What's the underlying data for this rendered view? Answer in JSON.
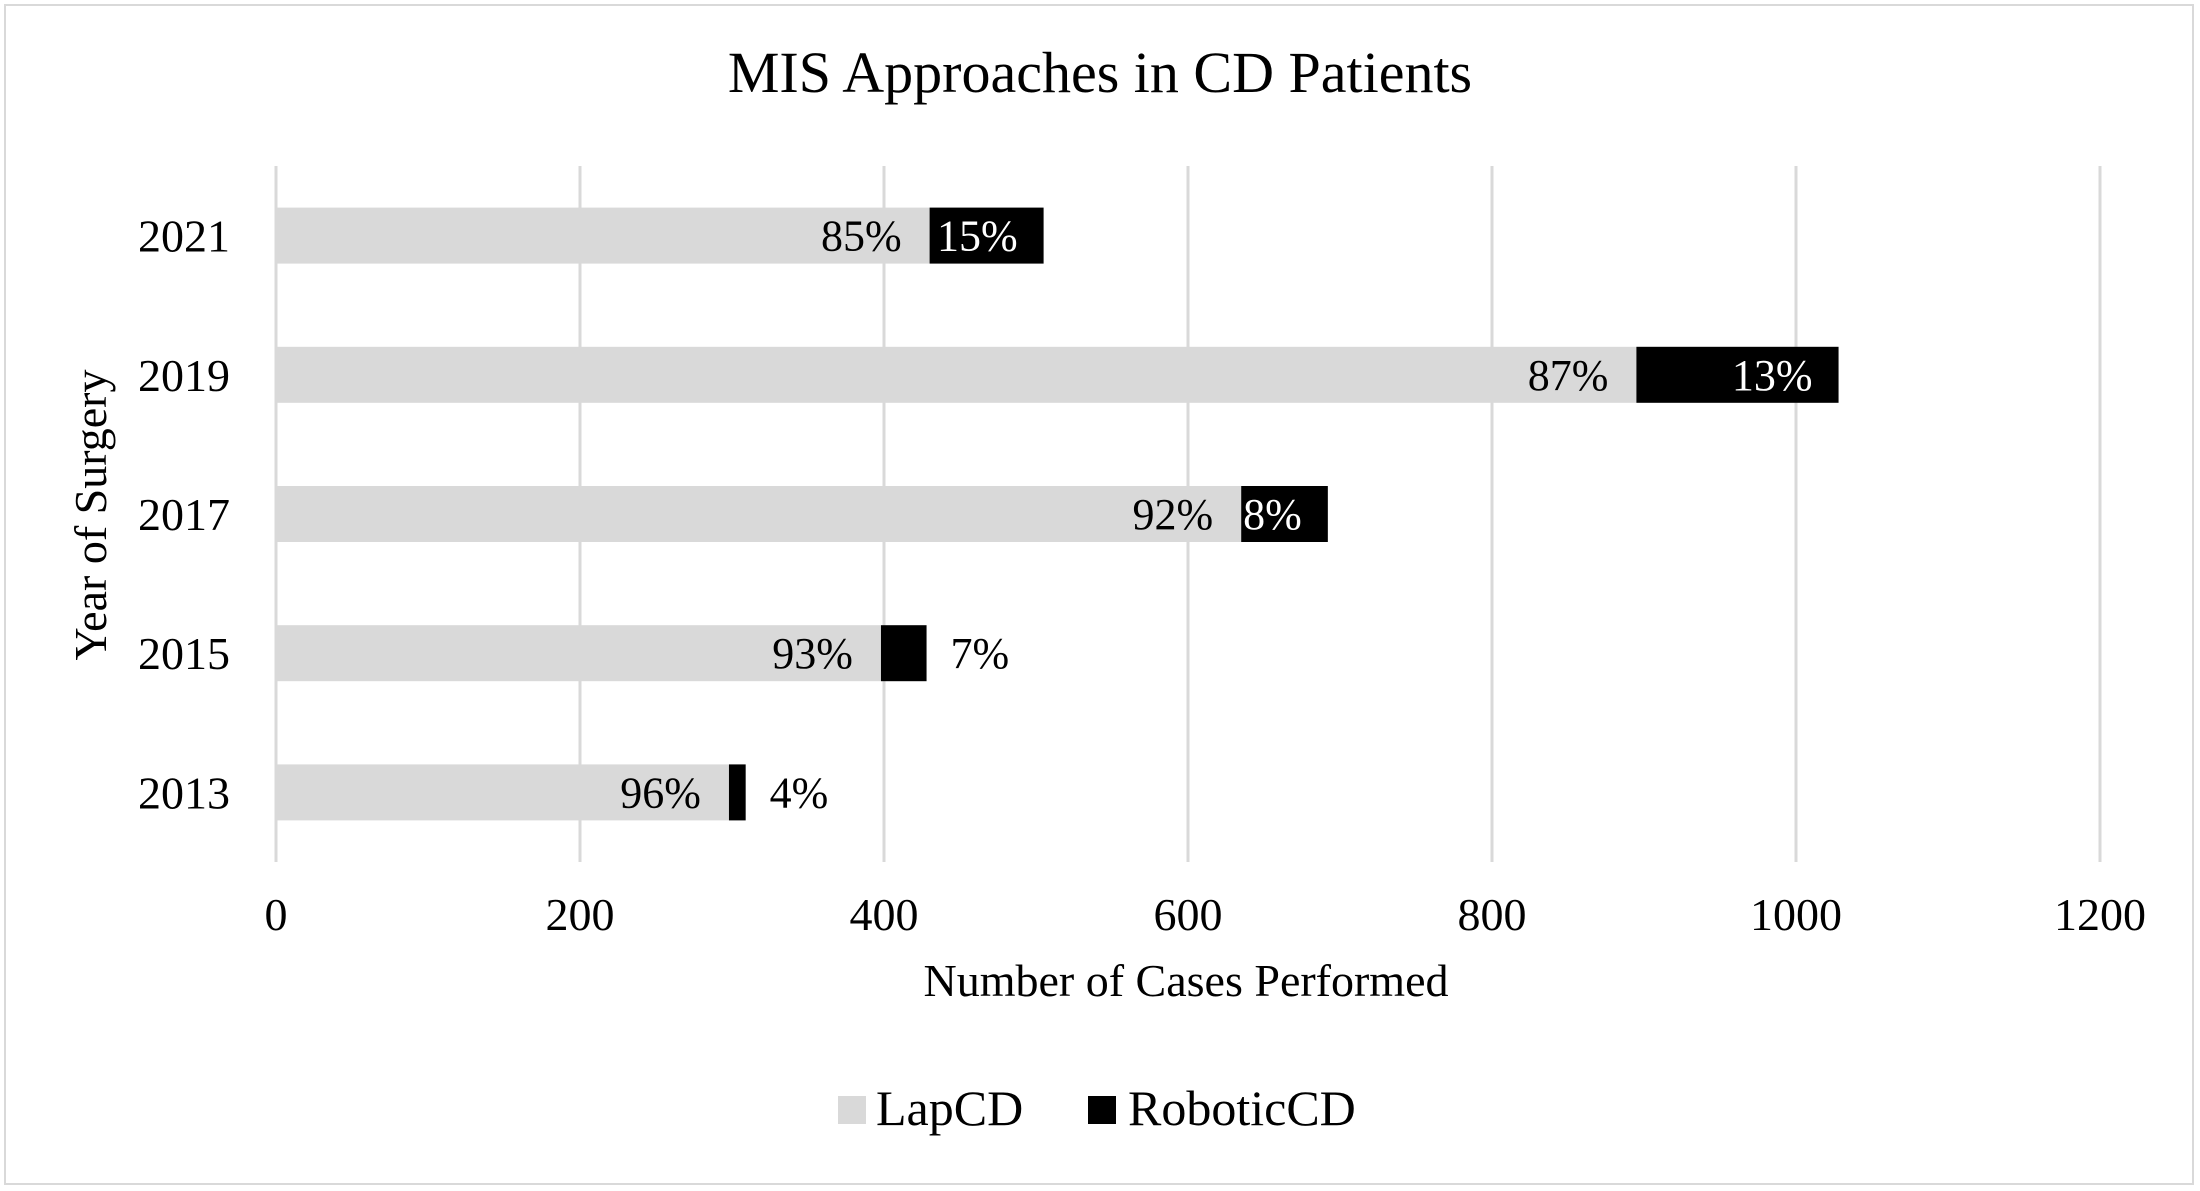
{
  "chart_data": {
    "type": "bar",
    "orientation": "horizontal",
    "stacked": true,
    "title": "MIS Approaches in CD Patients",
    "xlabel": "Number of Cases Performed",
    "ylabel": "Year of Surgery",
    "categories": [
      "2021",
      "2019",
      "2017",
      "2015",
      "2013"
    ],
    "series": [
      {
        "name": "LapCD",
        "color": "#d9d9d9",
        "values": [
          430,
          895,
          635,
          398,
          298
        ],
        "labels": [
          "85%",
          "87%",
          "92%",
          "93%",
          "96%"
        ]
      },
      {
        "name": "RoboticCD",
        "color": "#000000",
        "values": [
          75,
          133,
          57,
          30,
          11
        ],
        "labels": [
          "15%",
          "13%",
          "8%",
          "7%",
          "4%"
        ]
      }
    ],
    "xlim": [
      0,
      1200
    ],
    "xticks": [
      "0",
      "200",
      "400",
      "600",
      "800",
      "1000",
      "1200"
    ],
    "grid": "vertical",
    "legend_position": "bottom"
  }
}
